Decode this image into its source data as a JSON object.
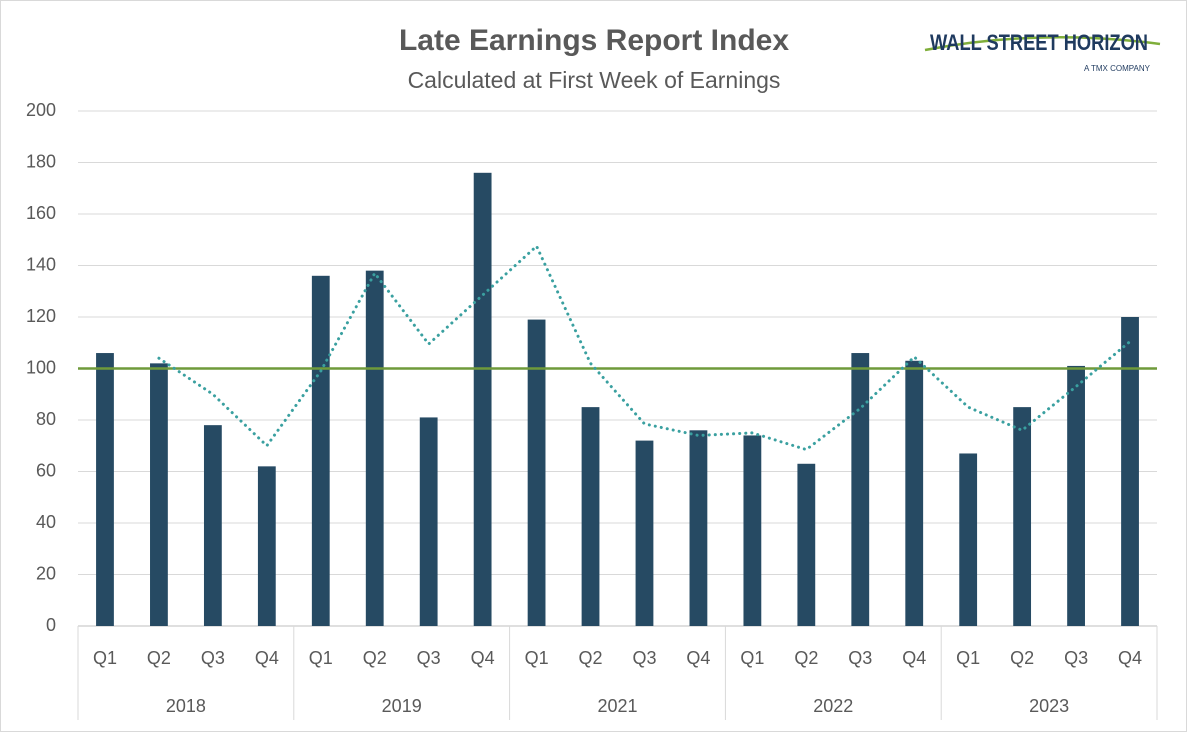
{
  "chart_data": {
    "type": "bar",
    "title": "Late Earnings Report Index",
    "subtitle": "Calculated at First Week of Earnings",
    "logo": {
      "name": "WALL STREET HORIZON",
      "tagline": "A TMX COMPANY"
    },
    "categories": [
      "Q1",
      "Q2",
      "Q3",
      "Q4",
      "Q1",
      "Q2",
      "Q3",
      "Q4",
      "Q1",
      "Q2",
      "Q3",
      "Q4",
      "Q1",
      "Q2",
      "Q3",
      "Q4",
      "Q1",
      "Q2",
      "Q3",
      "Q4"
    ],
    "groups": [
      "2018",
      "2019",
      "2021",
      "2022",
      "2023"
    ],
    "series": [
      {
        "type": "bar",
        "color": "#264a63",
        "values": [
          106,
          102,
          78,
          62,
          136,
          138,
          81,
          176,
          119,
          85,
          72,
          76,
          74,
          63,
          106,
          103,
          67,
          85,
          101,
          120
        ]
      },
      {
        "type": "line",
        "dash": "dotted",
        "color": "#3aa0a0",
        "values": [
          null,
          104,
          90,
          70,
          99,
          137,
          109.5,
          128.5,
          147.5,
          102,
          78.5,
          74,
          75,
          68.5,
          84.5,
          104.5,
          85,
          76,
          93,
          110.5
        ]
      }
    ],
    "reference_line": {
      "value": 100,
      "color": "#6f9a3a"
    },
    "ylim": [
      0,
      200
    ],
    "yticks": [
      0,
      20,
      40,
      60,
      80,
      100,
      120,
      140,
      160,
      180,
      200
    ],
    "grid": true
  }
}
